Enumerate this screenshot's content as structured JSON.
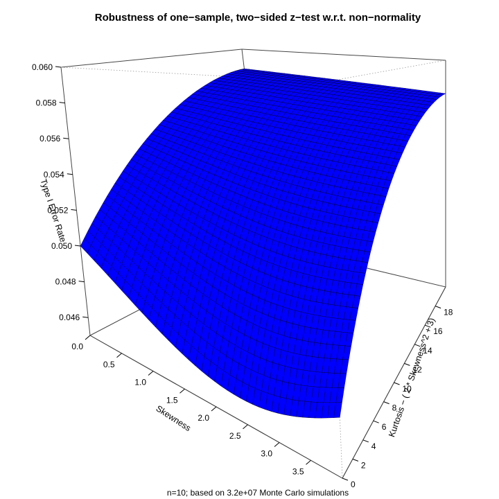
{
  "chart_data": {
    "type": "surface3d",
    "title": "Robustness of one−sample, two−sided z−test w.r.t. non−normality",
    "subtitle": "n=10; based on 3.2e+07 Monte Carlo simulations",
    "xlabel": "Skewness",
    "ylabel": "Kurtosis − ( 2 * Skewness^2 + 3)",
    "zlabel": "Type I Error Rate",
    "xlim": [
      0,
      4
    ],
    "ylim": [
      0,
      20
    ],
    "zlim": [
      0.045,
      0.06
    ],
    "x_ticks": [
      "0.0",
      "0.5",
      "1.0",
      "1.5",
      "2.0",
      "2.5",
      "3.0",
      "3.5"
    ],
    "y_ticks": [
      "0",
      "2",
      "4",
      "6",
      "8",
      "10",
      "12",
      "14",
      "16",
      "18"
    ],
    "z_ticks": [
      "0.046",
      "0.048",
      "0.050",
      "0.052",
      "0.054",
      "0.056",
      "0.058",
      "0.060"
    ],
    "surface_corners": {
      "skew0_kurt0": 0.05,
      "skew0_kurt20": 0.0585,
      "skew4_kurt0": 0.0473,
      "skew4_kurt20": 0.0578
    },
    "surface_color": "#0000ff",
    "mesh_color": "#000000",
    "grid_x_steps": 40,
    "grid_y_steps": 40
  }
}
